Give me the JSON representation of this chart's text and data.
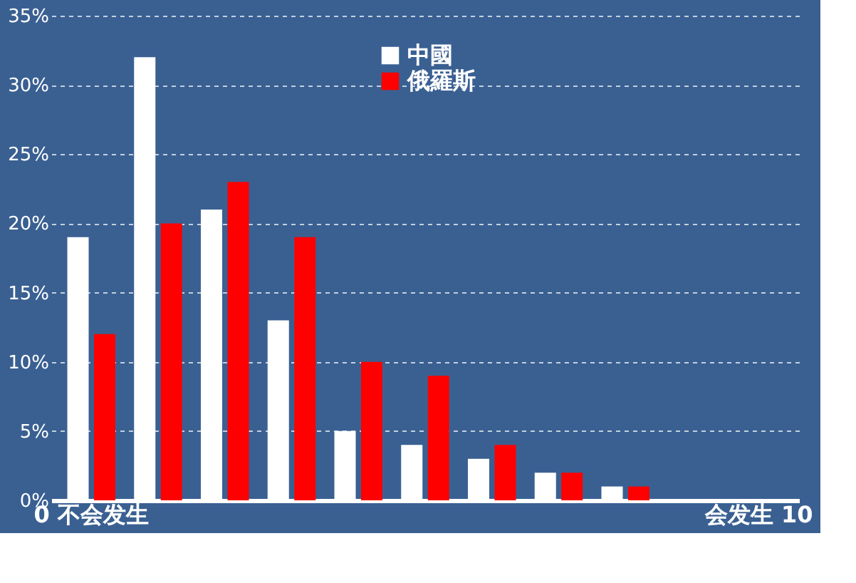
{
  "chart_data": {
    "type": "bar",
    "categories": [
      "0 不会发生",
      null,
      null,
      null,
      null,
      null,
      null,
      null,
      null,
      null,
      "会发生 10"
    ],
    "series": [
      {
        "name": "中國",
        "color": "#ffffff",
        "values": [
          19,
          32,
          21,
          13,
          5,
          4,
          3,
          2,
          1,
          null,
          null
        ]
      },
      {
        "name": "俄羅斯",
        "color": "#ff0000",
        "values": [
          12,
          20,
          23,
          19,
          10,
          9,
          4,
          2,
          1,
          null,
          null
        ]
      }
    ],
    "ylim": [
      0,
      35
    ],
    "yticks": [
      {
        "value": 0,
        "label": "0%"
      },
      {
        "value": 5,
        "label": "5%"
      },
      {
        "value": 10,
        "label": "10%"
      },
      {
        "value": 15,
        "label": "15%"
      },
      {
        "value": 20,
        "label": "20%"
      },
      {
        "value": 25,
        "label": "25%"
      },
      {
        "value": 30,
        "label": "30%"
      },
      {
        "value": 35,
        "label": "35%"
      }
    ],
    "grid": "y",
    "legend": "top"
  }
}
